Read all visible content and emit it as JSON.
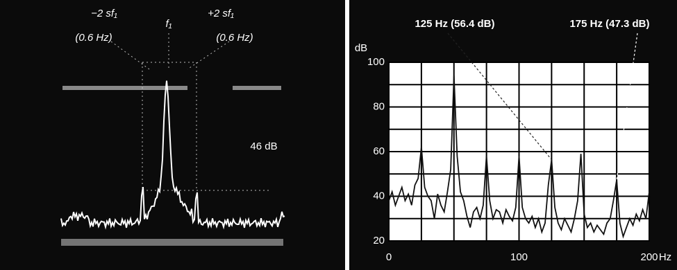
{
  "chart_data": [
    {
      "type": "image",
      "labels": [
        "−2 sf₁",
        "(0.6 Hz)",
        "f₁",
        "+2 sf₁",
        "(0.6 Hz)",
        "46 dB"
      ]
    },
    {
      "type": "line",
      "x_label": "Hz",
      "y_label": "dB",
      "x": [
        0,
        2.5,
        5,
        7.5,
        10,
        12.5,
        15,
        17.5,
        20,
        22.5,
        25,
        27.5,
        30,
        32.5,
        35,
        37.5,
        40,
        42.5,
        45,
        47.5,
        50,
        52.5,
        55,
        57.5,
        60,
        62.5,
        65,
        67.5,
        70,
        72.5,
        75,
        77.5,
        80,
        82.5,
        85,
        87.5,
        90,
        92.5,
        95,
        97.5,
        100,
        102.5,
        105,
        107.5,
        110,
        112.5,
        115,
        117.5,
        120,
        122.5,
        125,
        127.5,
        130,
        132.5,
        135,
        137.5,
        140,
        142.5,
        145,
        147.5,
        150,
        152.5,
        155,
        157.5,
        160,
        162.5,
        165,
        167.5,
        170,
        172.5,
        175,
        177.5,
        180,
        182.5,
        185,
        187.5,
        190,
        192.5,
        195,
        197.5,
        200
      ],
      "series": [
        {
          "color": "#111111",
          "values": [
            38,
            42,
            36,
            40,
            44,
            38,
            41,
            36,
            45,
            48,
            62,
            44,
            40,
            38,
            30,
            41,
            36,
            33,
            42,
            52,
            94,
            58,
            42,
            38,
            31,
            26,
            33,
            35,
            30,
            36,
            58,
            38,
            30,
            34,
            33,
            28,
            34,
            31,
            29,
            35,
            58,
            35,
            30,
            28,
            31,
            26,
            30,
            24,
            28,
            45,
            56.4,
            35,
            28,
            25,
            30,
            27,
            24,
            30,
            38,
            59,
            32,
            26,
            28,
            24,
            27,
            25,
            23,
            28,
            30,
            38,
            47.3,
            28,
            22,
            26,
            30,
            27,
            32,
            29,
            34,
            30,
            42
          ]
        }
      ],
      "xlim": [
        0,
        200
      ],
      "xticks": [
        0,
        100,
        200
      ],
      "minor_xticks": [
        25,
        50,
        75,
        125,
        150,
        175
      ],
      "ylim": [
        20,
        100
      ],
      "yticks": [
        20,
        40,
        60,
        80,
        100
      ],
      "minor_yticks": [
        30,
        50,
        70,
        90
      ],
      "grid": true,
      "annotations": [
        {
          "label": "125 Hz (56.4 dB)",
          "x": 125,
          "y": 56.4
        },
        {
          "label": "175 Hz (47.3 dB)",
          "x": 175,
          "y": 47.3
        }
      ]
    }
  ]
}
